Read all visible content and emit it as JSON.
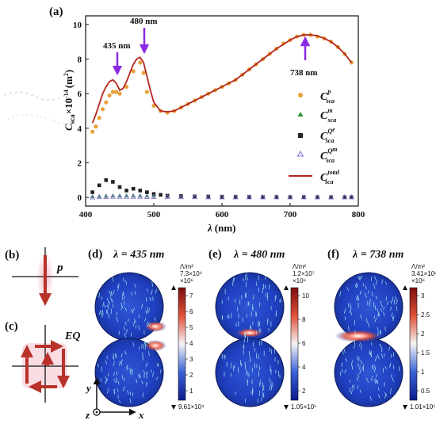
{
  "panel_a": {
    "label": "(a)",
    "annotations": [
      "435 nm",
      "480 nm",
      "738 nm"
    ],
    "ylabel_main": "C",
    "ylabel_sub": "sca",
    "ylabel_rest": "×10",
    "ylabel_exp": "-14",
    "ylabel_unit": "(m",
    "ylabel_unit_exp": "2",
    "ylabel_close": ")",
    "xlabel_main": "λ",
    "xlabel_unit": "(nm)",
    "legend": [
      {
        "base": "C",
        "sub": "sca",
        "sup": "p"
      },
      {
        "base": "C",
        "sub": "sca",
        "sup": "m"
      },
      {
        "base": "C",
        "sub": "sca",
        "sup": "Q"
      },
      {
        "base": "C",
        "sub": "sca",
        "sup": "Q"
      },
      {
        "base": "C",
        "sub": "sca",
        "sup": "total"
      }
    ],
    "colors": {
      "p": "#e8a13a",
      "m": "#2f8f2f",
      "Qe": "#222222",
      "Qm": "#7b6fd6",
      "total": "#b3261e",
      "arrow": "#8a2be2"
    }
  },
  "chart_data": {
    "type": "scatter",
    "xlabel": "λ (nm)",
    "ylabel": "C_sca ×10^-14 (m^2)",
    "xlim": [
      400,
      800
    ],
    "ylim": [
      -0.5,
      10.5
    ],
    "xticks": [
      400,
      500,
      600,
      700,
      800
    ],
    "yticks": [
      0,
      2,
      4,
      6,
      8,
      10
    ],
    "series": [
      {
        "name": "C_sca^p",
        "marker": "circle",
        "x": [
          410,
          415,
          420,
          425,
          430,
          435,
          440,
          445,
          450,
          460,
          470,
          480,
          485,
          490,
          500,
          510,
          520,
          530,
          540,
          550,
          560,
          570,
          580,
          590,
          600,
          610,
          620,
          630,
          640,
          650,
          660,
          670,
          680,
          690,
          700,
          710,
          720,
          730,
          740,
          750,
          760,
          770,
          780,
          790
        ],
        "y": [
          3.8,
          4.1,
          4.6,
          5.1,
          5.5,
          5.9,
          6.1,
          6.1,
          6.0,
          6.4,
          7.3,
          7.8,
          7.2,
          6.1,
          5.3,
          5.0,
          4.9,
          5.0,
          5.2,
          5.4,
          5.6,
          5.8,
          6.0,
          6.2,
          6.4,
          6.6,
          6.8,
          7.1,
          7.4,
          7.7,
          8.0,
          8.3,
          8.6,
          8.9,
          9.1,
          9.3,
          9.4,
          9.4,
          9.3,
          9.2,
          9.0,
          8.7,
          8.3,
          7.8
        ]
      },
      {
        "name": "C_sca^m",
        "marker": "triangle",
        "x": [
          410,
          420,
          430,
          440,
          450,
          460,
          470,
          480,
          490,
          500,
          520,
          540,
          560,
          580,
          600,
          620,
          640,
          660,
          680,
          700,
          720,
          740,
          760,
          780,
          790
        ],
        "y": [
          0.05,
          0.06,
          0.08,
          0.1,
          0.1,
          0.1,
          0.1,
          0.1,
          0.09,
          0.08,
          0.07,
          0.06,
          0.05,
          0.05,
          0.04,
          0.04,
          0.03,
          0.03,
          0.03,
          0.02,
          0.02,
          0.02,
          0.02,
          0.02,
          0.02
        ]
      },
      {
        "name": "C_sca^Qe",
        "marker": "square",
        "x": [
          410,
          420,
          430,
          440,
          450,
          460,
          470,
          480,
          490,
          500,
          510,
          520,
          540,
          560,
          580,
          600,
          620,
          640,
          660,
          680,
          700,
          720,
          740,
          760,
          780,
          790
        ],
        "y": [
          0.3,
          0.7,
          1.0,
          0.9,
          0.6,
          0.4,
          0.5,
          0.4,
          0.3,
          0.2,
          0.15,
          0.1,
          0.08,
          0.06,
          0.05,
          0.04,
          0.03,
          0.03,
          0.02,
          0.02,
          0.02,
          0.02,
          0.01,
          0.01,
          0.01,
          0.01
        ]
      },
      {
        "name": "C_sca^Qm",
        "marker": "triangle-open",
        "x": [
          410,
          420,
          430,
          440,
          450,
          460,
          470,
          480,
          490,
          500,
          520,
          540,
          560,
          580,
          600,
          620,
          640,
          660,
          680,
          700,
          720,
          740,
          760,
          780,
          790
        ],
        "y": [
          0.0,
          0.02,
          0.03,
          0.04,
          0.04,
          0.04,
          0.04,
          0.04,
          0.03,
          0.03,
          0.02,
          0.02,
          0.02,
          0.01,
          0.01,
          0.01,
          0.01,
          0.01,
          0.01,
          0.01,
          0.01,
          0.01,
          0.01,
          0.01,
          0.01
        ]
      },
      {
        "name": "C_sca^total",
        "marker": "line",
        "x": [
          410,
          415,
          420,
          425,
          430,
          435,
          440,
          445,
          450,
          455,
          460,
          465,
          470,
          475,
          480,
          485,
          490,
          495,
          500,
          510,
          520,
          530,
          540,
          550,
          560,
          580,
          600,
          620,
          640,
          660,
          680,
          700,
          710,
          720,
          730,
          740,
          750,
          760,
          770,
          780,
          790
        ],
        "y": [
          4.3,
          4.8,
          5.4,
          6.0,
          6.4,
          6.7,
          6.8,
          6.6,
          6.2,
          6.3,
          6.7,
          7.2,
          7.7,
          8.0,
          8.1,
          7.8,
          7.0,
          6.2,
          5.5,
          5.0,
          4.95,
          5.0,
          5.2,
          5.4,
          5.6,
          6.0,
          6.4,
          6.8,
          7.4,
          8.0,
          8.6,
          9.1,
          9.3,
          9.4,
          9.4,
          9.35,
          9.2,
          9.0,
          8.7,
          8.3,
          7.8
        ]
      }
    ]
  },
  "panel_b": {
    "label": "(b)",
    "text": "p",
    "colors": {
      "arrow": "#b8322a",
      "glow": "#f3b9c5"
    }
  },
  "panel_c": {
    "label": "(c)",
    "text": "EQ"
  },
  "maps": [
    {
      "label": "(d)",
      "lambda": "λ = 435 nm",
      "unit": "Λ/m²",
      "max": "7.3×10⁶",
      "maxsub": "×10⁶",
      "min": "9.61×10⁴",
      "ticks": [
        "7",
        "6",
        "5",
        "4",
        "3",
        "2",
        "1"
      ]
    },
    {
      "label": "(e)",
      "lambda": "λ = 480 nm",
      "unit": "Λ/m²",
      "max": "1.2×10⁷",
      "maxsub": "×10⁶",
      "min": "1.05×10⁵",
      "ticks": [
        "10",
        "8",
        "6",
        "4",
        "2"
      ]
    },
    {
      "label": "(f)",
      "lambda": "λ = 738 nm",
      "unit": "Λ/m²",
      "max": "3.41×10⁶",
      "maxsub": "×10⁶",
      "min": "1.01×10⁵",
      "ticks": [
        "3",
        "2.5",
        "2",
        "1.5",
        "1",
        "0.5"
      ]
    }
  ],
  "axes_icon": {
    "y": "y",
    "z": "z",
    "x": "x"
  }
}
